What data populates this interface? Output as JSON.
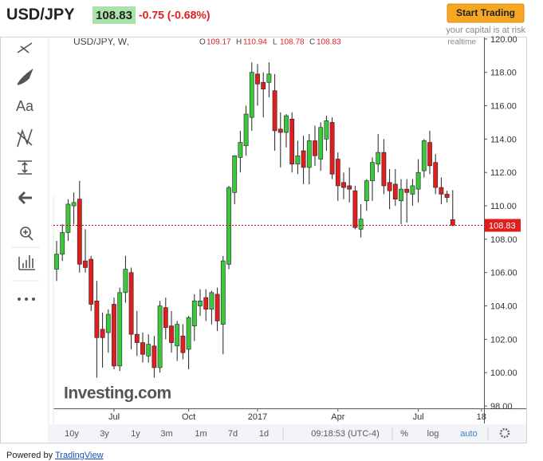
{
  "header": {
    "symbol": "USD/JPY",
    "change": "-0.75 (-0.68%)",
    "button": "Start Trading",
    "risk_note": "your capital is at risk"
  },
  "toolbar": {
    "text_tool": "Aa"
  },
  "chart_data": {
    "type": "candlestick",
    "legend": "USD/JPY, W,",
    "ohlc_labels": [
      "O",
      "H",
      "L",
      "C"
    ],
    "realtime": "realtime",
    "watermark": "Investing.com",
    "last_price": 108.83,
    "up_color": "#3cc83c",
    "down_color": "#e01e1e",
    "ylim": [
      97.86,
      120.09
    ],
    "yticks": [
      {
        "value": 98,
        "label": "98.00"
      },
      {
        "value": 100,
        "label": "100.00"
      },
      {
        "value": 102,
        "label": "102.00"
      },
      {
        "value": 104,
        "label": "104.00"
      },
      {
        "value": 106,
        "label": "106.00"
      },
      {
        "value": 108,
        "label": "108.00"
      },
      {
        "value": 110,
        "label": "110.00"
      },
      {
        "value": 112,
        "label": "112.00"
      },
      {
        "value": 114,
        "label": "114.00"
      },
      {
        "value": 116,
        "label": "116.00"
      },
      {
        "value": 118,
        "label": "118.00"
      },
      {
        "value": 120,
        "label": "120.00"
      }
    ],
    "categories": [
      null,
      null,
      null,
      null,
      null,
      null,
      null,
      null,
      null,
      null,
      "Jul",
      null,
      null,
      null,
      null,
      null,
      null,
      null,
      null,
      null,
      null,
      null,
      null,
      "Oct",
      null,
      null,
      null,
      null,
      null,
      null,
      null,
      null,
      null,
      null,
      null,
      "2017",
      null,
      null,
      null,
      null,
      null,
      null,
      null,
      null,
      null,
      null,
      null,
      null,
      null,
      "Apr",
      null,
      null,
      null,
      null,
      null,
      null,
      null,
      null,
      null,
      null,
      null,
      null,
      null,
      "Jul",
      null,
      null,
      null,
      null,
      null,
      null,
      null,
      null,
      null,
      null,
      "18"
    ],
    "open": [
      106.2,
      107.1,
      108.4,
      110.0,
      110.4,
      106.7,
      106.8,
      104.3,
      102.6,
      102.4,
      104.1,
      100.4,
      104.8,
      106.0,
      102.3,
      101.8,
      101.0,
      101.6,
      100.3,
      103.9,
      102.8,
      101.6,
      102.2,
      101.4,
      102.8,
      104.0,
      104.5,
      103.8,
      104.7,
      102.9,
      106.5,
      110.8,
      112.9,
      113.6,
      115.3,
      117.9,
      117.4,
      117.4,
      116.9,
      114.6,
      114.4,
      115.2,
      112.5,
      113.3,
      112.3,
      113.9,
      112.8,
      114.0,
      115.0,
      112.8,
      111.4,
      111.2,
      110.9,
      108.6,
      110.3,
      111.5,
      112.5,
      113.2,
      111.4,
      111.3,
      110.3,
      111.0,
      110.7,
      111.0,
      112.1,
      113.8,
      112.6,
      111.1,
      110.7,
      109.17,
      null,
      null,
      null,
      null,
      null
    ],
    "high": [
      107.9,
      108.9,
      110.4,
      110.8,
      111.5,
      108.6,
      107.0,
      105.5,
      103.6,
      103.8,
      104.5,
      105.1,
      107.0,
      106.3,
      103.7,
      102.4,
      102.3,
      102.2,
      104.3,
      104.5,
      103.7,
      103.1,
      102.9,
      103.4,
      104.7,
      105.0,
      105.0,
      104.9,
      105.1,
      107.0,
      111.2,
      113.0,
      114.5,
      116.0,
      118.6,
      118.5,
      118.0,
      118.6,
      117.9,
      115.6,
      115.5,
      115.6,
      113.9,
      114.2,
      114.3,
      114.8,
      115.0,
      115.4,
      115.3,
      113.2,
      112.0,
      112.3,
      111.2,
      110.1,
      111.6,
      112.9,
      114.3,
      114.0,
      112.2,
      112.2,
      111.6,
      111.6,
      111.6,
      112.8,
      114.0,
      114.5,
      113.1,
      111.7,
      110.9,
      110.94,
      null,
      null,
      null,
      null,
      null
    ],
    "low": [
      105.5,
      106.7,
      107.9,
      108.9,
      106.0,
      106.0,
      103.7,
      99.7,
      100.3,
      101.2,
      100.2,
      100.1,
      104.2,
      101.4,
      101.0,
      100.6,
      100.6,
      99.7,
      100.0,
      102.0,
      101.2,
      100.7,
      100.8,
      100.2,
      101.9,
      103.4,
      103.1,
      102.9,
      102.5,
      101.1,
      106.2,
      110.1,
      112.0,
      113.0,
      114.5,
      116.0,
      115.3,
      116.5,
      113.3,
      112.3,
      113.5,
      112.0,
      111.9,
      111.3,
      111.3,
      112.4,
      112.1,
      113.3,
      111.6,
      110.3,
      110.4,
      110.2,
      108.6,
      108.1,
      109.7,
      110.3,
      112.0,
      110.7,
      109.8,
      110.0,
      108.9,
      109.0,
      110.0,
      110.2,
      111.7,
      111.9,
      110.7,
      110.1,
      110.2,
      108.78,
      null,
      null,
      null,
      null,
      null
    ],
    "close": [
      107.1,
      108.4,
      110.1,
      110.2,
      106.5,
      106.3,
      104.1,
      102.1,
      102.1,
      103.5,
      100.4,
      104.8,
      106.2,
      102.3,
      101.8,
      101.1,
      101.7,
      100.3,
      104.0,
      102.7,
      101.8,
      102.9,
      101.2,
      103.3,
      104.3,
      104.3,
      103.8,
      104.8,
      103.1,
      106.7,
      111.1,
      113.0,
      113.8,
      115.5,
      118.0,
      117.3,
      117.0,
      117.9,
      114.5,
      114.4,
      115.4,
      112.5,
      113.0,
      112.3,
      113.9,
      113.0,
      114.7,
      115.1,
      111.9,
      111.2,
      111.1,
      111.0,
      108.7,
      109.2,
      111.5,
      112.6,
      113.2,
      111.2,
      110.9,
      110.4,
      111.0,
      110.8,
      111.2,
      112.0,
      113.9,
      112.4,
      111.1,
      110.7,
      110.5,
      108.83,
      null,
      null,
      null,
      null,
      null
    ]
  },
  "footer": {
    "ranges": [
      "10y",
      "3y",
      "1y",
      "3m",
      "1m",
      "7d",
      "1d"
    ],
    "time": "09:18:53 (UTC-4)",
    "percent": "%",
    "log": "log",
    "auto": "auto",
    "powered_by": "Powered by",
    "brand": "TradingView"
  }
}
